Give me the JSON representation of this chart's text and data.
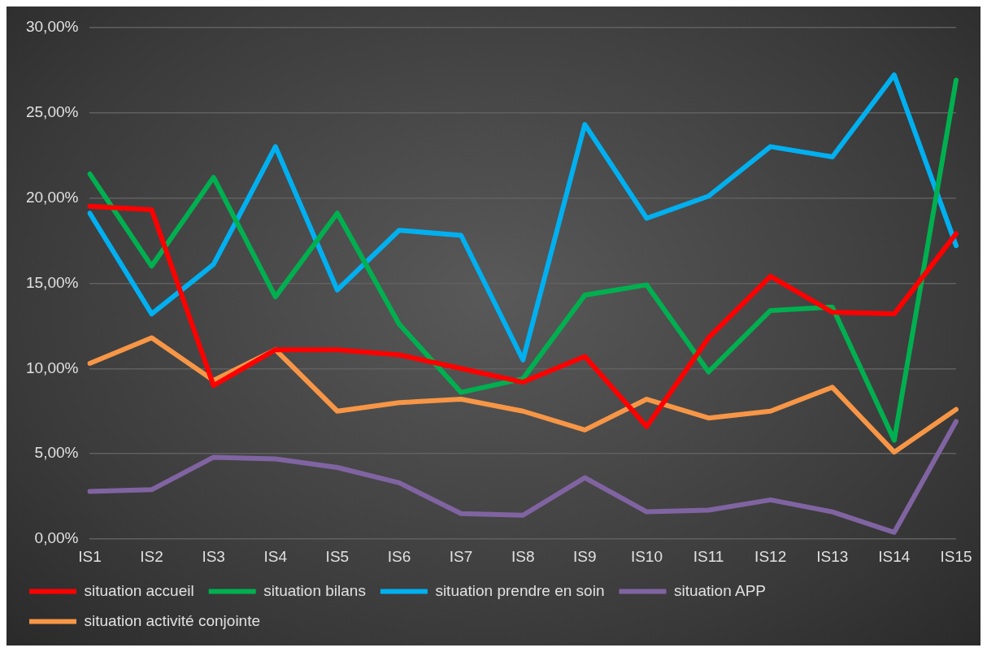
{
  "chart_data": {
    "type": "line",
    "categories": [
      "IS1",
      "IS2",
      "IS3",
      "IS4",
      "IS5",
      "IS6",
      "IS7",
      "IS8",
      "IS9",
      "IS10",
      "IS11",
      "IS12",
      "IS13",
      "IS14",
      "IS15"
    ],
    "ylim": [
      0,
      30
    ],
    "yticks": [
      {
        "value": 0,
        "label": "0,00%"
      },
      {
        "value": 5,
        "label": "5,00%"
      },
      {
        "value": 10,
        "label": "10,00%"
      },
      {
        "value": 15,
        "label": "15,00%"
      },
      {
        "value": 20,
        "label": "20,00%"
      },
      {
        "value": 25,
        "label": "25,00%"
      },
      {
        "value": 30,
        "label": "30,00%"
      }
    ],
    "grid": "y",
    "legend": "bottom",
    "marker": "none",
    "line_style": "solid",
    "series": [
      {
        "name": "situation accueil",
        "color": "#ff0000",
        "values": [
          19.5,
          19.3,
          9.0,
          11.1,
          11.1,
          10.8,
          10.0,
          9.2,
          10.7,
          6.6,
          11.8,
          15.4,
          13.3,
          13.2,
          17.9
        ]
      },
      {
        "name": "situation bilans",
        "color": "#00b050",
        "values": [
          21.4,
          16.0,
          21.2,
          14.2,
          19.1,
          12.6,
          8.6,
          9.4,
          14.3,
          14.9,
          9.8,
          13.4,
          13.6,
          5.8,
          26.9
        ]
      },
      {
        "name": "situation prendre en soin",
        "color": "#00b0f0",
        "values": [
          19.1,
          13.2,
          16.1,
          23.0,
          14.6,
          18.1,
          17.8,
          10.5,
          24.3,
          18.8,
          20.1,
          23.0,
          22.4,
          27.2,
          17.2
        ]
      },
      {
        "name": "situation APP",
        "color": "#8064a2",
        "values": [
          2.8,
          2.9,
          4.8,
          4.7,
          4.2,
          3.3,
          1.5,
          1.4,
          3.6,
          1.6,
          1.7,
          2.3,
          1.6,
          0.4,
          6.9
        ]
      },
      {
        "name": "situation activité conjointe",
        "color": "#f79646",
        "values": [
          10.3,
          11.8,
          9.3,
          11.1,
          7.5,
          8.0,
          8.2,
          7.5,
          6.4,
          8.2,
          7.1,
          7.5,
          8.9,
          5.1,
          7.6
        ]
      }
    ]
  }
}
